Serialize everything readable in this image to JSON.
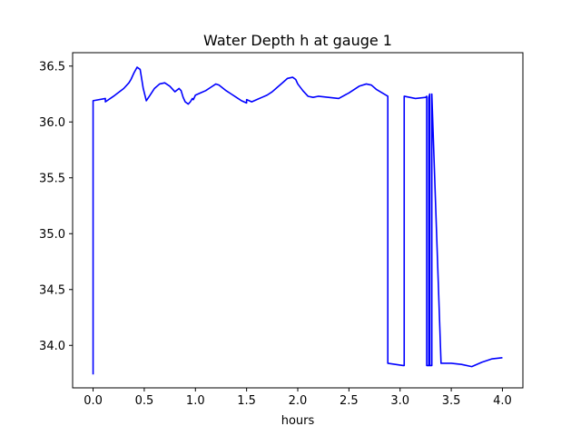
{
  "chart_data": {
    "type": "line",
    "title": "Water Depth h at gauge 1",
    "xlabel": "hours",
    "ylabel": "",
    "xlim": [
      -0.2,
      4.2
    ],
    "ylim": [
      33.62,
      36.62
    ],
    "xticks": [
      0.0,
      0.5,
      1.0,
      1.5,
      2.0,
      2.5,
      3.0,
      3.5,
      4.0
    ],
    "xtick_labels": [
      "0.0",
      "0.5",
      "1.0",
      "1.5",
      "2.0",
      "2.5",
      "3.0",
      "3.5",
      "4.0"
    ],
    "yticks": [
      34.0,
      34.5,
      35.0,
      35.5,
      36.0,
      36.5
    ],
    "ytick_labels": [
      "34.0",
      "34.5",
      "35.0",
      "35.5",
      "36.0",
      "36.5"
    ],
    "grid": false,
    "legend": "none",
    "series": [
      {
        "color": "#0000ff",
        "x": [
          0.0,
          0.0,
          0.0,
          0.12,
          0.12,
          0.2,
          0.3,
          0.35,
          0.37,
          0.4,
          0.43,
          0.46,
          0.49,
          0.52,
          0.55,
          0.6,
          0.65,
          0.7,
          0.75,
          0.8,
          0.84,
          0.86,
          0.88,
          0.9,
          0.93,
          0.95,
          0.97,
          0.98,
          1.0,
          1.05,
          1.1,
          1.15,
          1.2,
          1.23,
          1.3,
          1.35,
          1.4,
          1.45,
          1.5,
          1.5,
          1.55,
          1.6,
          1.65,
          1.7,
          1.75,
          1.8,
          1.85,
          1.9,
          1.95,
          1.98,
          2.0,
          2.05,
          2.1,
          2.15,
          2.2,
          2.3,
          2.4,
          2.5,
          2.6,
          2.67,
          2.72,
          2.77,
          2.88,
          2.88,
          3.03,
          3.04,
          3.04,
          3.15,
          3.25,
          3.26,
          3.26,
          3.28,
          3.28,
          3.29,
          3.29,
          3.31,
          3.31,
          3.4,
          3.5,
          3.6,
          3.7,
          3.8,
          3.9,
          4.0
        ],
        "y": [
          33.74,
          35.8,
          36.19,
          36.21,
          36.18,
          36.23,
          36.3,
          36.35,
          36.38,
          36.44,
          36.49,
          36.47,
          36.3,
          36.19,
          36.23,
          36.3,
          36.34,
          36.35,
          36.32,
          36.27,
          36.3,
          36.28,
          36.22,
          36.18,
          36.16,
          36.18,
          36.21,
          36.2,
          36.24,
          36.26,
          36.28,
          36.31,
          36.34,
          36.33,
          36.28,
          36.25,
          36.22,
          36.19,
          36.17,
          36.2,
          36.18,
          36.2,
          36.22,
          36.24,
          36.27,
          36.31,
          36.35,
          36.39,
          36.4,
          36.38,
          36.34,
          36.28,
          36.23,
          36.22,
          36.23,
          36.22,
          36.21,
          36.26,
          36.32,
          36.34,
          36.33,
          36.29,
          36.23,
          33.84,
          33.82,
          33.82,
          36.23,
          36.21,
          36.22,
          36.23,
          33.82,
          33.82,
          36.22,
          36.25,
          33.82,
          33.82,
          36.25,
          33.84,
          33.84,
          33.83,
          33.81,
          33.85,
          33.88,
          33.89
        ]
      }
    ]
  }
}
